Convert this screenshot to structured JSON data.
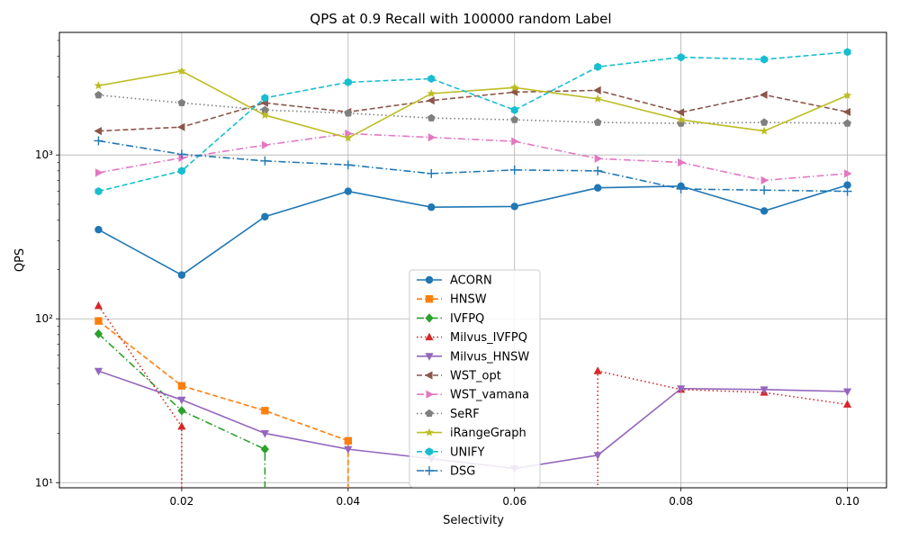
{
  "chart_data": {
    "type": "line",
    "title": "QPS at 0.9 Recall with 100000 random Label",
    "xlabel": "Selectivity",
    "ylabel": "QPS",
    "xlim": [
      0.0053,
      0.1047
    ],
    "ylim": [
      9.3,
      5600
    ],
    "yscale": "log",
    "grid": true,
    "legend_position": "lower-center",
    "x_ticks": [
      0.02,
      0.04,
      0.06,
      0.08,
      0.1
    ],
    "x_tick_labels": [
      "0.02",
      "0.04",
      "0.06",
      "0.08",
      "0.10"
    ],
    "y_ticks": [
      10,
      100,
      1000
    ],
    "y_tick_labels": [
      "10¹",
      "10²",
      "10³"
    ],
    "series": [
      {
        "name": "ACORN",
        "color": "#1f77b4",
        "dash": "solid",
        "marker": "circle",
        "points": [
          [
            0.01,
            350
          ],
          [
            0.02,
            185
          ],
          [
            0.03,
            420
          ],
          [
            0.04,
            600
          ],
          [
            0.05,
            480
          ],
          [
            0.06,
            485
          ],
          [
            0.07,
            630
          ],
          [
            0.08,
            645
          ],
          [
            0.09,
            455
          ],
          [
            0.1,
            655
          ]
        ]
      },
      {
        "name": "HNSW",
        "color": "#ff7f0e",
        "dash": "dashed",
        "marker": "square",
        "points": [
          [
            0.01,
            97
          ],
          [
            0.02,
            39
          ],
          [
            0.03,
            27.5
          ],
          [
            0.04,
            18
          ],
          [
            0.04,
            8
          ]
        ]
      },
      {
        "name": "IVFPQ",
        "color": "#2ca02c",
        "dash": "dashdot",
        "marker": "diamond",
        "points": [
          [
            0.01,
            81
          ],
          [
            0.02,
            27.5
          ],
          [
            0.03,
            16
          ],
          [
            0.03,
            8
          ]
        ]
      },
      {
        "name": "Milvus_IVFPQ",
        "color": "#d62728",
        "dash": "dotted",
        "marker": "triangle-up",
        "points": [
          [
            0.01,
            120
          ],
          [
            0.02,
            22
          ],
          [
            0.02,
            8
          ],
          [
            0.07,
            8
          ],
          [
            0.07,
            48
          ],
          [
            0.08,
            37
          ],
          [
            0.09,
            35.5
          ],
          [
            0.1,
            30
          ]
        ]
      },
      {
        "name": "Milvus_HNSW",
        "color": "#9467bd",
        "dash": "solid",
        "marker": "triangle-down",
        "points": [
          [
            0.01,
            48
          ],
          [
            0.02,
            32
          ],
          [
            0.03,
            20
          ],
          [
            0.04,
            16
          ],
          [
            0.05,
            14
          ],
          [
            0.06,
            12.2
          ],
          [
            0.07,
            14.7
          ],
          [
            0.08,
            37.5
          ],
          [
            0.09,
            37
          ],
          [
            0.1,
            36
          ]
        ]
      },
      {
        "name": "WST_opt",
        "color": "#8c564b",
        "dash": "dashed",
        "marker": "triangle-left",
        "points": [
          [
            0.01,
            1400
          ],
          [
            0.02,
            1480
          ],
          [
            0.03,
            2080
          ],
          [
            0.04,
            1830
          ],
          [
            0.05,
            2150
          ],
          [
            0.06,
            2420
          ],
          [
            0.07,
            2480
          ],
          [
            0.08,
            1820
          ],
          [
            0.09,
            2330
          ],
          [
            0.1,
            1830
          ]
        ]
      },
      {
        "name": "WST_vamana",
        "color": "#e377c2",
        "dash": "dashdot",
        "marker": "triangle-right",
        "points": [
          [
            0.01,
            780
          ],
          [
            0.02,
            960
          ],
          [
            0.03,
            1150
          ],
          [
            0.04,
            1350
          ],
          [
            0.05,
            1280
          ],
          [
            0.06,
            1210
          ],
          [
            0.07,
            950
          ],
          [
            0.08,
            900
          ],
          [
            0.09,
            700
          ],
          [
            0.1,
            770
          ]
        ]
      },
      {
        "name": "SeRF",
        "color": "#7f7f7f",
        "dash": "dotted",
        "marker": "pentagon",
        "points": [
          [
            0.01,
            2320
          ],
          [
            0.02,
            2080
          ],
          [
            0.03,
            1880
          ],
          [
            0.04,
            1800
          ],
          [
            0.05,
            1680
          ],
          [
            0.06,
            1640
          ],
          [
            0.07,
            1580
          ],
          [
            0.08,
            1560
          ],
          [
            0.09,
            1580
          ],
          [
            0.1,
            1560
          ]
        ]
      },
      {
        "name": "iRangeGraph",
        "color": "#bcbd22",
        "dash": "solid",
        "marker": "star",
        "points": [
          [
            0.01,
            2650
          ],
          [
            0.02,
            3250
          ],
          [
            0.03,
            1750
          ],
          [
            0.04,
            1270
          ],
          [
            0.05,
            2370
          ],
          [
            0.06,
            2580
          ],
          [
            0.07,
            2200
          ],
          [
            0.08,
            1640
          ],
          [
            0.09,
            1400
          ],
          [
            0.1,
            2310
          ]
        ]
      },
      {
        "name": "UNIFY",
        "color": "#17becf",
        "dash": "dashed",
        "marker": "hexagon",
        "points": [
          [
            0.01,
            600
          ],
          [
            0.02,
            800
          ],
          [
            0.03,
            2230
          ],
          [
            0.04,
            2780
          ],
          [
            0.05,
            2920
          ],
          [
            0.06,
            1880
          ],
          [
            0.07,
            3450
          ],
          [
            0.08,
            3950
          ],
          [
            0.09,
            3830
          ],
          [
            0.1,
            4250
          ]
        ]
      },
      {
        "name": "DSG",
        "color": "#1f77b4",
        "dash": "dashdot",
        "marker": "plus",
        "points": [
          [
            0.01,
            1220
          ],
          [
            0.02,
            1010
          ],
          [
            0.03,
            920
          ],
          [
            0.04,
            870
          ],
          [
            0.05,
            770
          ],
          [
            0.06,
            810
          ],
          [
            0.07,
            800
          ],
          [
            0.08,
            620
          ],
          [
            0.09,
            610
          ],
          [
            0.1,
            600
          ]
        ]
      }
    ]
  }
}
